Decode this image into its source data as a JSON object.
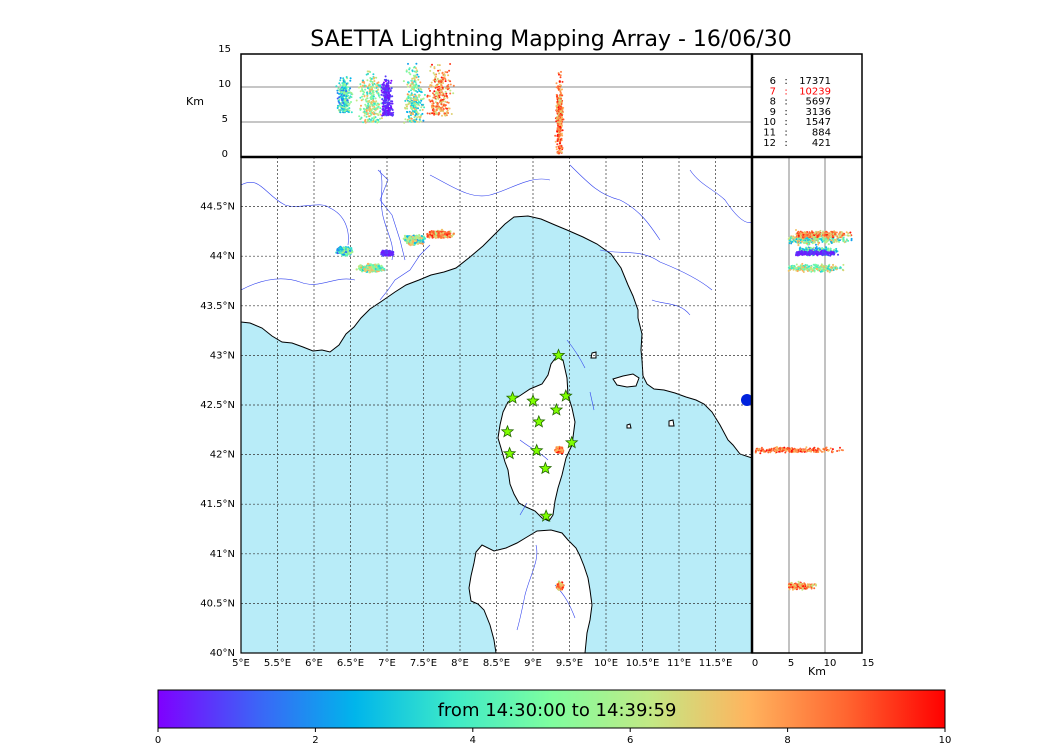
{
  "figure": {
    "title": "SAETTA Lightning Mapping Array - 16/06/30",
    "time_range_label": "from 14:30:00 to 14:39:59"
  },
  "top_panel": {
    "ylabel": "Km",
    "yticks": [
      "0",
      "5",
      "10",
      "15"
    ],
    "altitude_range": [
      0,
      15
    ]
  },
  "side_panel": {
    "xlabel": "Km",
    "xticks": [
      "0",
      "5",
      "10",
      "15"
    ],
    "altitude_range": [
      0,
      15
    ]
  },
  "map": {
    "lon_range": [
      5,
      12
    ],
    "lat_range": [
      40,
      45
    ],
    "lon_ticks": [
      "5°E",
      "5.5°E",
      "6°E",
      "6.5°E",
      "7°E",
      "7.5°E",
      "8°E",
      "8.5°E",
      "9°E",
      "9.5°E",
      "10°E",
      "10.5°E",
      "11°E",
      "11.5°E"
    ],
    "lat_ticks": [
      "40°N",
      "40.5°N",
      "41°N",
      "41.5°N",
      "42°N",
      "42.5°N",
      "43°N",
      "43.5°N",
      "44°N",
      "44.5°N"
    ],
    "sea_color": "#b8ecf8",
    "land_color": "#ffffff",
    "river_color": "#3344ee",
    "station_color": "#7fff00",
    "stations": [
      {
        "lon": 9.35,
        "lat": 43.0
      },
      {
        "lon": 8.72,
        "lat": 42.57
      },
      {
        "lon": 9.0,
        "lat": 42.54
      },
      {
        "lon": 9.45,
        "lat": 42.59
      },
      {
        "lon": 9.08,
        "lat": 42.33
      },
      {
        "lon": 9.32,
        "lat": 42.45
      },
      {
        "lon": 8.65,
        "lat": 42.23
      },
      {
        "lon": 9.53,
        "lat": 42.12
      },
      {
        "lon": 9.05,
        "lat": 42.04
      },
      {
        "lon": 8.68,
        "lat": 42.01
      },
      {
        "lon": 9.17,
        "lat": 41.86
      },
      {
        "lon": 9.18,
        "lat": 41.38
      }
    ]
  },
  "station_counts": [
    {
      "stations": "6",
      "count": "17371",
      "color": "#000000"
    },
    {
      "stations": "7",
      "count": "10239",
      "color": "#ff0000"
    },
    {
      "stations": "8",
      "count": "5697",
      "color": "#000000"
    },
    {
      "stations": "9",
      "count": "3136",
      "color": "#000000"
    },
    {
      "stations": "10",
      "count": "1547",
      "color": "#000000"
    },
    {
      "stations": "11",
      "count": "884",
      "color": "#000000"
    },
    {
      "stations": "12",
      "count": "421",
      "color": "#000000"
    }
  ],
  "colorbar": {
    "ticks": [
      "0",
      "2",
      "4",
      "6",
      "8",
      "10"
    ],
    "range": [
      0,
      10
    ],
    "colormap": "rainbow",
    "colors": [
      "#7f00ff",
      "#3d63f7",
      "#00b5eb",
      "#3deac8",
      "#7ffe9f",
      "#c2e985",
      "#ffb45e",
      "#ff6530",
      "#ff0000"
    ]
  },
  "chart_data": {
    "type": "scatter",
    "x_unit": "longitude (°E)",
    "y_unit": "latitude (°N)",
    "z_unit": "altitude (km)",
    "color_unit": "minutes after 14:30:00",
    "clusters": [
      {
        "lon_range": [
          6.3,
          6.55
        ],
        "lat_range": [
          44.0,
          44.1
        ],
        "alt_range": [
          6.5,
          12
        ],
        "time_range": [
          1,
          6
        ]
      },
      {
        "lon_range": [
          6.55,
          7.0
        ],
        "lat_range": [
          43.83,
          43.93
        ],
        "alt_range": [
          5,
          13
        ],
        "time_range": [
          3,
          8
        ]
      },
      {
        "lon_range": [
          6.9,
          7.1
        ],
        "lat_range": [
          44.0,
          44.06
        ],
        "alt_range": [
          6,
          12
        ],
        "time_range": [
          0,
          1
        ]
      },
      {
        "lon_range": [
          7.2,
          7.55
        ],
        "lat_range": [
          44.1,
          44.22
        ],
        "alt_range": [
          5,
          14
        ],
        "time_range": [
          2,
          8
        ]
      },
      {
        "lon_range": [
          7.5,
          7.95
        ],
        "lat_range": [
          44.17,
          44.27
        ],
        "alt_range": [
          6,
          14
        ],
        "time_range": [
          6,
          10
        ]
      },
      {
        "lon_range": [
          9.3,
          9.42
        ],
        "lat_range": [
          42.01,
          42.08
        ],
        "alt_range": [
          0.5,
          13
        ],
        "time_range": [
          7,
          10
        ]
      },
      {
        "lon_range": [
          9.32,
          9.42
        ],
        "lat_range": [
          40.63,
          40.72
        ],
        "alt_range": [
          5,
          9
        ],
        "time_range": [
          6,
          10
        ]
      }
    ]
  }
}
